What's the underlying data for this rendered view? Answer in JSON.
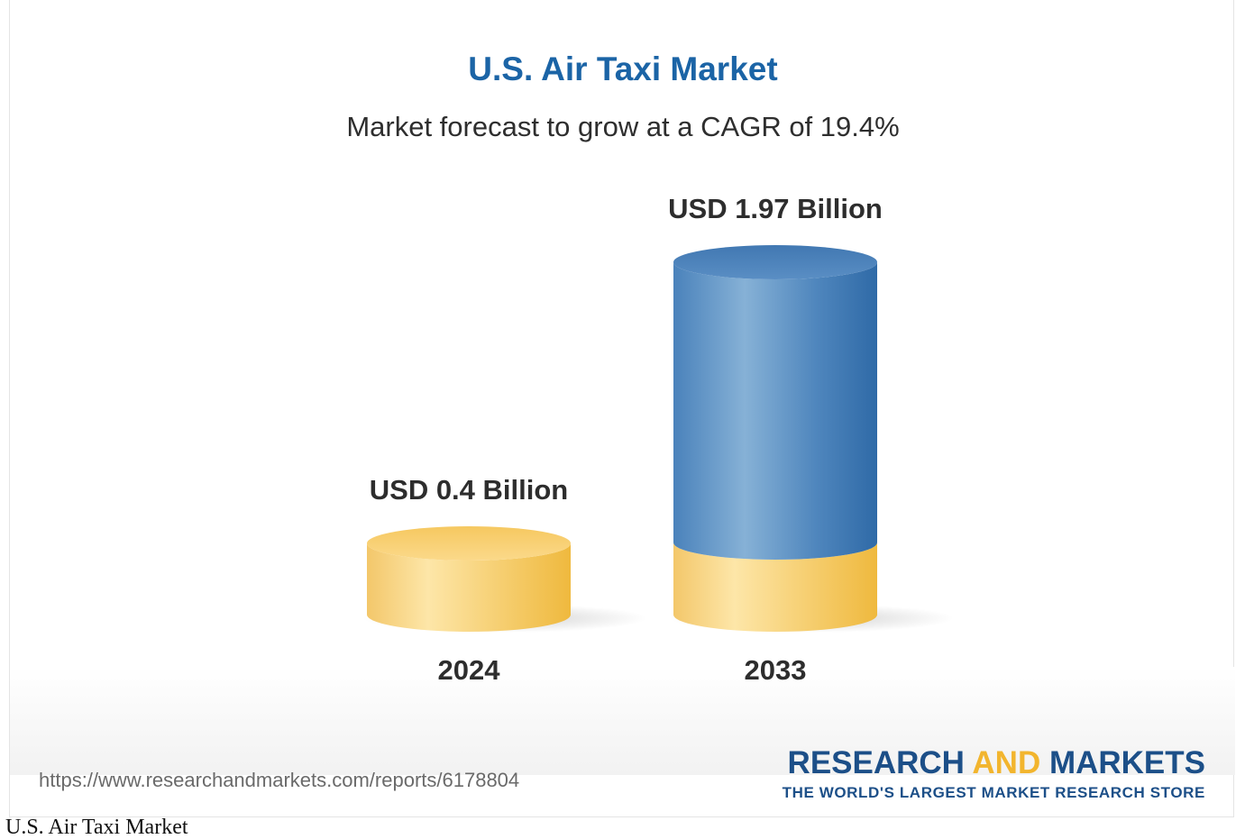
{
  "chart_data": {
    "type": "bar",
    "title": "U.S. Air Taxi Market",
    "subtitle": "Market forecast to grow at a CAGR of 19.4%",
    "categories": [
      "2024",
      "2033"
    ],
    "values": [
      0.4,
      1.97
    ],
    "value_labels": [
      "USD 0.4 Billion",
      "USD 1.97 Billion"
    ],
    "unit": "USD Billion",
    "xlabel": "",
    "ylabel": "",
    "ylim": [
      0,
      1.97
    ],
    "grid": false,
    "legend": "none"
  },
  "colors": {
    "title": "#1b64a6",
    "base_cylinder": "#f2c45a",
    "growth_cylinder": "#4f86bd",
    "brand": "#1c4f88",
    "brand_accent": "#f2b52e"
  },
  "footer": {
    "source_url": "https://www.researchandmarkets.com/reports/6178804",
    "brand_part1": "RESEARCH ",
    "brand_part2": "AND",
    "brand_part3": " MARKETS",
    "brand_tagline": "THE WORLD'S LARGEST MARKET RESEARCH STORE"
  },
  "caption": "U.S. Air Taxi Market"
}
